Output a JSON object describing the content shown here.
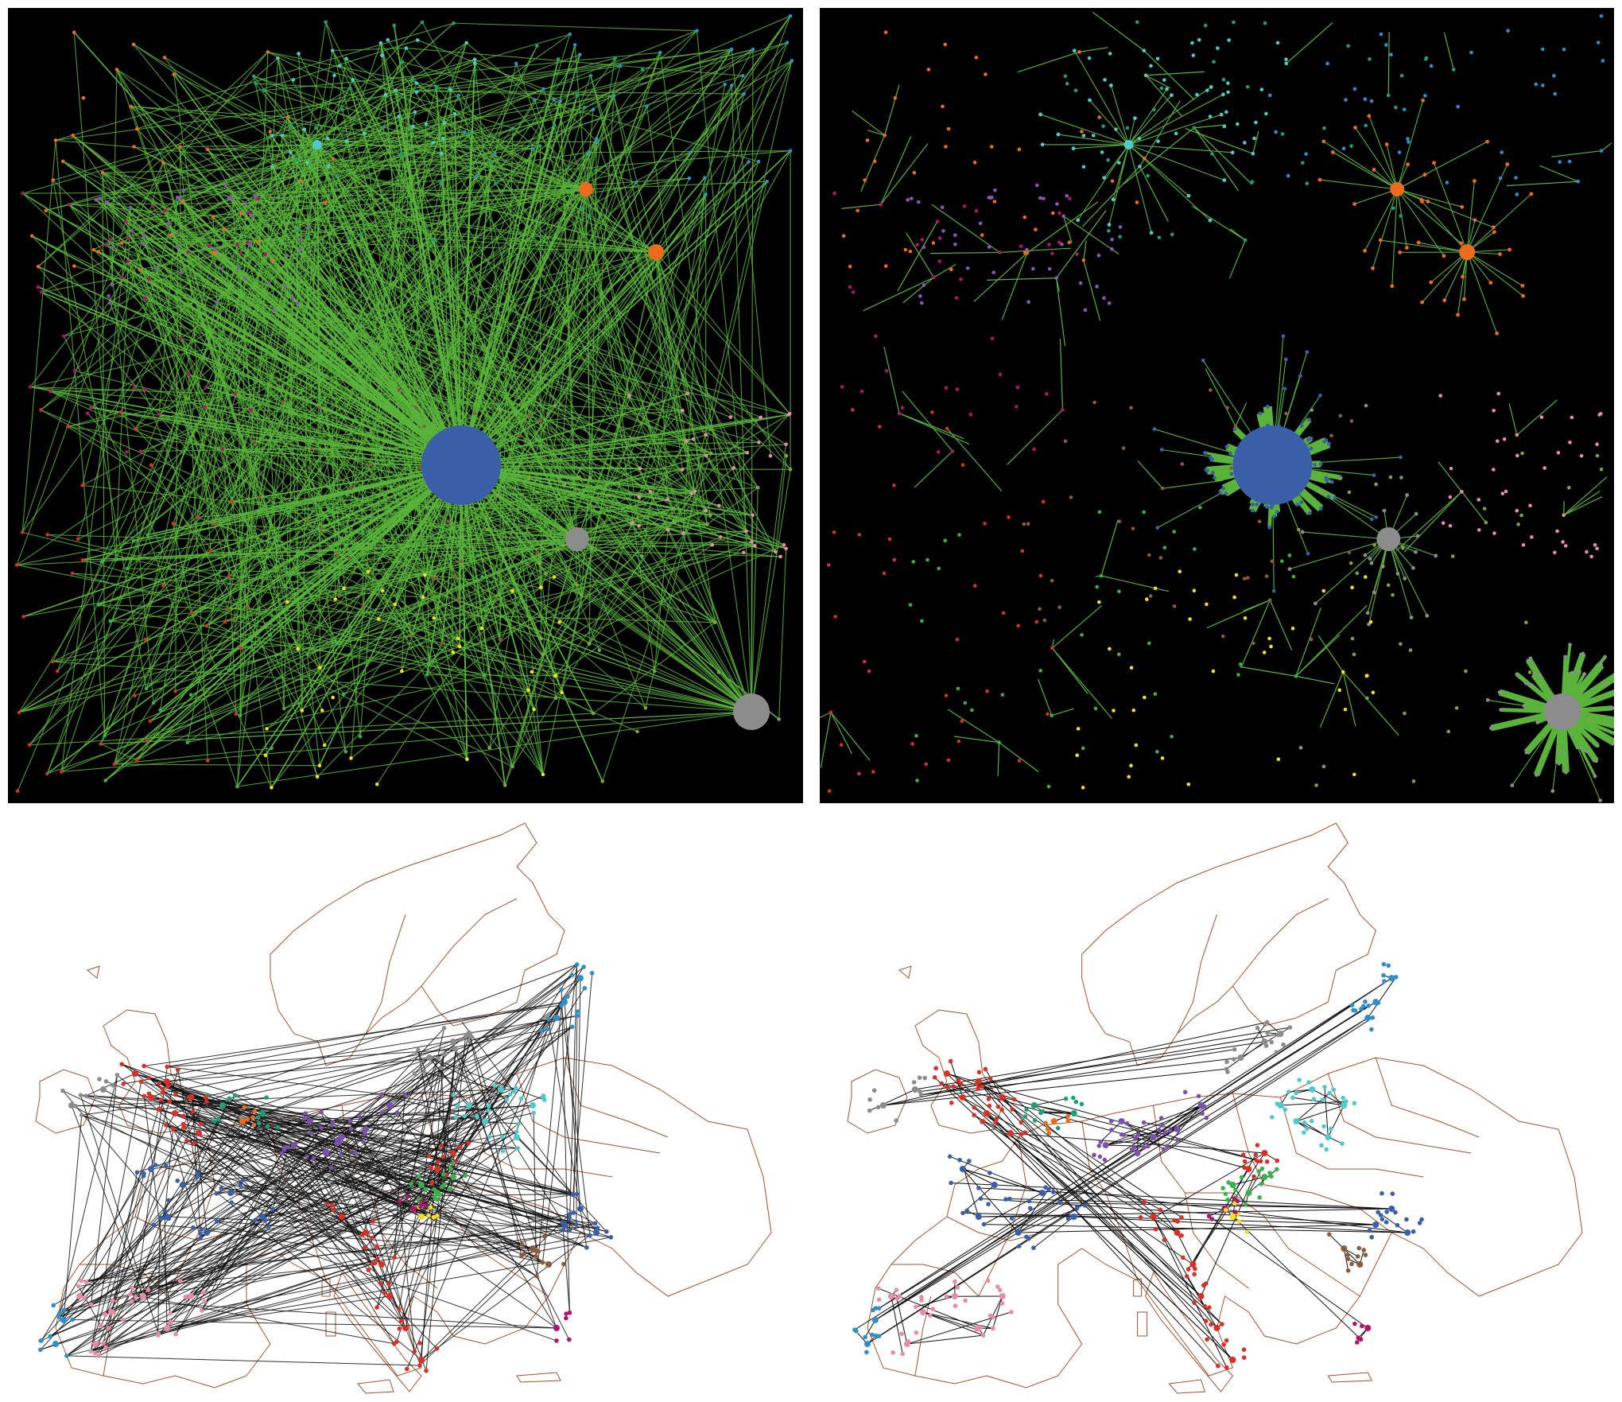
{
  "figure": {
    "panels": [
      {
        "id": "a",
        "kind": "network-abstract",
        "edges": "all",
        "background": "#000000",
        "edge_color": "#59b33a"
      },
      {
        "id": "b",
        "kind": "network-abstract",
        "edges": "clusters",
        "background": "#000000",
        "edge_color": "#59b33a"
      },
      {
        "id": "c",
        "kind": "network-map",
        "edges": "all",
        "background": "#ffffff",
        "edge_color": "#111111",
        "border_color": "#a0522d"
      },
      {
        "id": "d",
        "kind": "network-map",
        "edges": "clusters",
        "background": "#ffffff",
        "edge_color": "#111111",
        "border_color": "#a0522d"
      }
    ],
    "palette": {
      "blue": "#3a5fa8",
      "orange": "#ee6b1e",
      "gray": "#8c8c8c",
      "cyan": "#4ecac8",
      "red": "#d73027",
      "yellow": "#f2e11a",
      "green": "#37b24d",
      "purple": "#7b52ab",
      "teal": "#1f9e7a",
      "pink": "#e88ca7",
      "brown": "#8e5a3c",
      "skyblue": "#2f8fcb",
      "magenta": "#b0136b",
      "olive": "#7fa345",
      "violet": "#8a56b7"
    },
    "communities": [
      "blue",
      "orange",
      "gray",
      "cyan",
      "red",
      "yellow",
      "green",
      "purple",
      "teal",
      "pink",
      "brown",
      "skyblue",
      "magenta",
      "olive",
      "violet"
    ]
  }
}
